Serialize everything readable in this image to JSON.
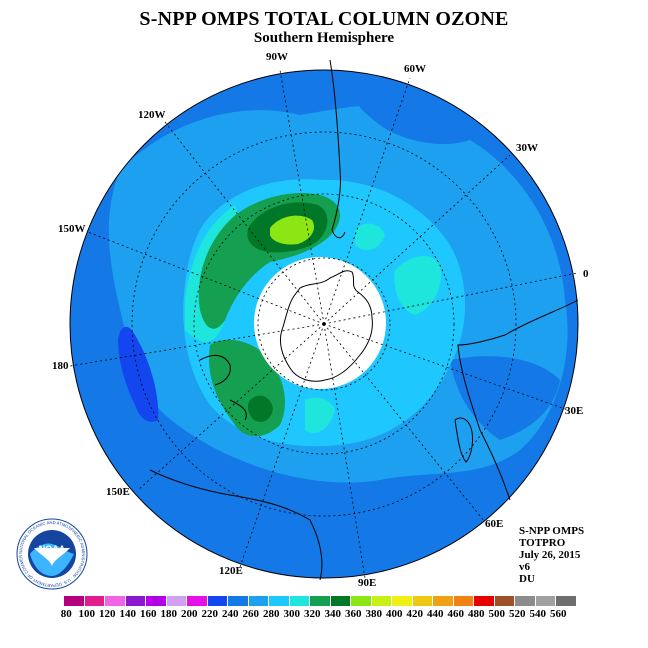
{
  "title": "S-NPP OMPS TOTAL COLUMN OZONE",
  "subtitle": "Southern Hemisphere",
  "longitude_labels": [
    "90W",
    "60W",
    "120W",
    "30W",
    "150W",
    "0",
    "180",
    "30E",
    "150E",
    "60E",
    "120E",
    "90E"
  ],
  "info": {
    "instrument": "S-NPP OMPS",
    "product": "TOTPRO",
    "date": "July 26, 2015",
    "version": "v6",
    "units": "DU"
  },
  "logo_text": "NOAA",
  "logo_ring_text": "NATIONAL OCEANIC AND ATMOSPHERIC ADMINISTRATION · U.S. DEPARTMENT OF COMMERCE",
  "colorbar": {
    "ticks": [
      "80",
      "100",
      "120",
      "140",
      "160",
      "180",
      "200",
      "220",
      "240",
      "260",
      "280",
      "300",
      "320",
      "340",
      "360",
      "380",
      "400",
      "420",
      "440",
      "460",
      "480",
      "500",
      "520",
      "540",
      "560"
    ],
    "colors": [
      "#b4007f",
      "#e01e8c",
      "#f064e6",
      "#8c18d0",
      "#b400e6",
      "#d2a0f0",
      "#e60fe6",
      "#1446f0",
      "#1478e6",
      "#1ea0f0",
      "#1ec8ff",
      "#1ee6dc",
      "#14a050",
      "#007828",
      "#8ce614",
      "#c8f014",
      "#f0f014",
      "#f0c814",
      "#f0a014",
      "#f08214",
      "#e60000",
      "#a05028",
      "#8c8c8c",
      "#a0a0a0",
      "#6e6e6e"
    ]
  },
  "colors": {
    "deep_blue": "#1446f0",
    "blue": "#1478e6",
    "light_blue": "#1ea0f0",
    "cyan": "#1ec8ff",
    "aqua": "#1ee6dc",
    "dark_green": "#007828",
    "green": "#14a050",
    "yellow_green": "#8ce614"
  }
}
